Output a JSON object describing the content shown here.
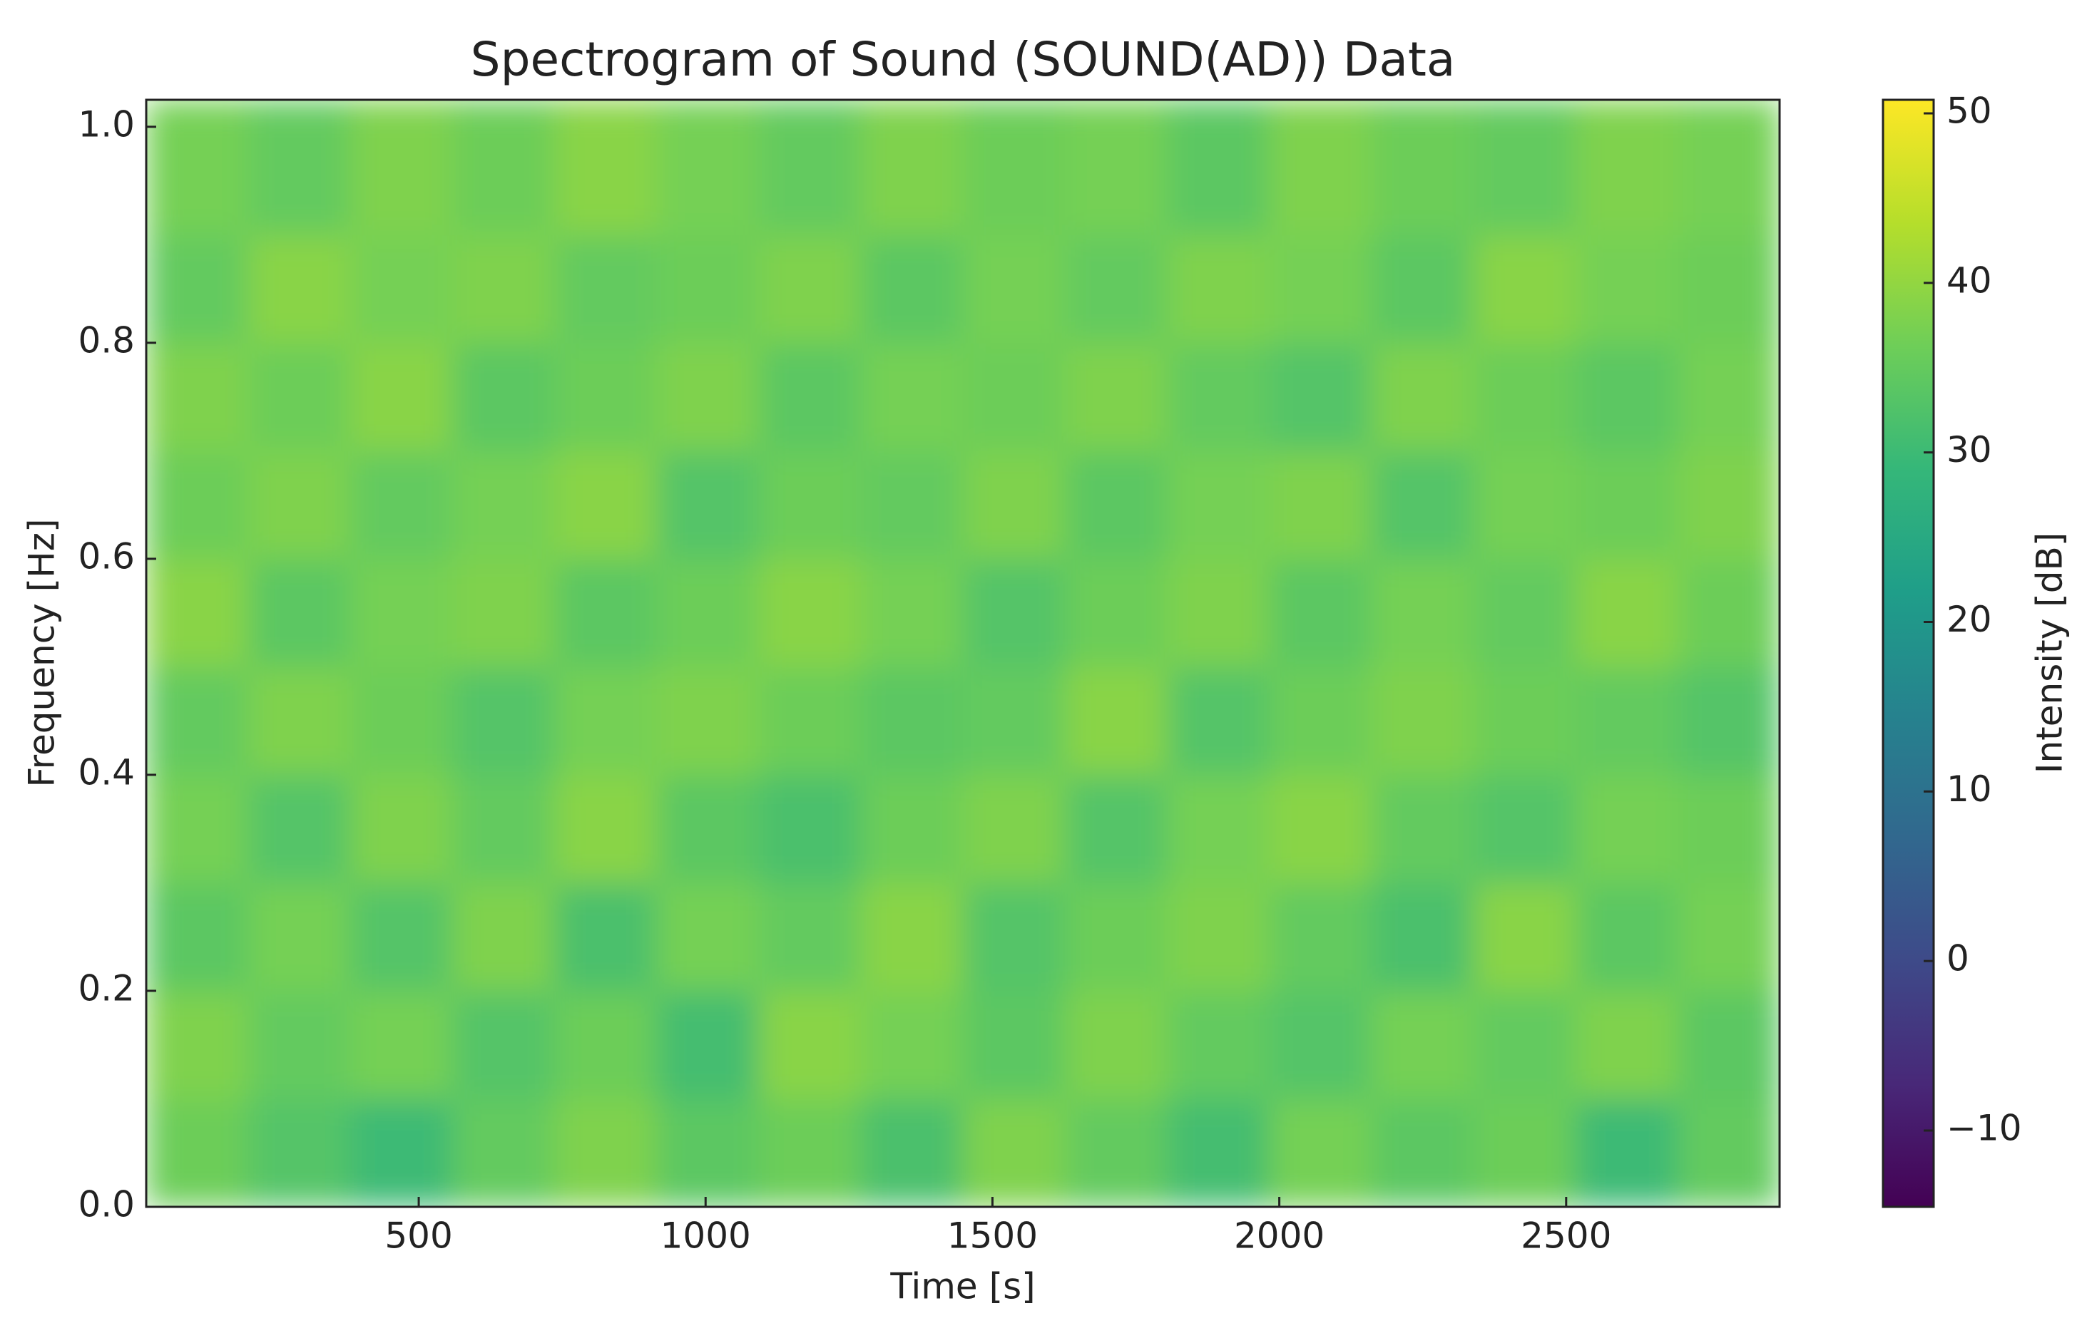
{
  "chart_data": {
    "type": "heatmap",
    "title": "Spectrogram of Sound (SOUND(AD)) Data",
    "x_label": "Time [s]",
    "y_label": "Frequency [Hz]",
    "colorbar_label": "Intensity [dB]",
    "colormap": "viridis",
    "x": [
      114,
      292,
      470,
      648,
      826,
      1004,
      1182,
      1360,
      1538,
      1716,
      1894,
      2072,
      2250,
      2428,
      2606,
      2784
    ],
    "y": [
      0.05,
      0.15,
      0.25,
      0.35,
      0.45,
      0.55,
      0.65,
      0.75,
      0.85,
      0.95
    ],
    "z": [
      [
        36,
        33,
        30,
        35,
        38,
        34,
        36,
        32,
        38,
        35,
        31,
        37,
        34,
        36,
        30,
        35
      ],
      [
        38,
        35,
        37,
        33,
        36,
        31,
        39,
        37,
        34,
        38,
        35,
        33,
        37,
        35,
        38,
        34
      ],
      [
        34,
        37,
        33,
        38,
        32,
        37,
        35,
        39,
        33,
        36,
        38,
        35,
        32,
        39,
        34,
        37
      ],
      [
        37,
        33,
        38,
        35,
        39,
        34,
        32,
        36,
        38,
        33,
        37,
        39,
        35,
        33,
        37,
        36
      ],
      [
        35,
        38,
        36,
        33,
        37,
        38,
        36,
        34,
        35,
        39,
        33,
        36,
        38,
        36,
        35,
        33
      ],
      [
        39,
        34,
        37,
        38,
        34,
        36,
        39,
        37,
        33,
        36,
        38,
        34,
        37,
        35,
        39,
        36
      ],
      [
        36,
        38,
        35,
        37,
        39,
        33,
        36,
        35,
        38,
        34,
        37,
        38,
        33,
        37,
        36,
        38
      ],
      [
        38,
        36,
        39,
        34,
        36,
        38,
        34,
        37,
        36,
        38,
        35,
        33,
        38,
        36,
        34,
        37
      ],
      [
        35,
        39,
        37,
        38,
        35,
        36,
        38,
        34,
        37,
        35,
        38,
        37,
        34,
        39,
        37,
        36
      ],
      [
        37,
        35,
        38,
        36,
        39,
        37,
        35,
        38,
        36,
        37,
        34,
        38,
        36,
        35,
        38,
        37
      ]
    ],
    "xlim": [
      25,
      2872
    ],
    "ylim": [
      0,
      1.025
    ],
    "xticks": [
      500,
      1000,
      1500,
      2000,
      2500
    ],
    "yticks": [
      {
        "value": 0,
        "label": "0.0"
      },
      0.2,
      0.4,
      0.6,
      0.8,
      {
        "value": 1,
        "label": "1.0"
      }
    ],
    "clim": [
      -14.5,
      50.8
    ],
    "cticks": [
      {
        "value": -10,
        "label": "−10"
      },
      0,
      10,
      20,
      30,
      40,
      50
    ]
  }
}
